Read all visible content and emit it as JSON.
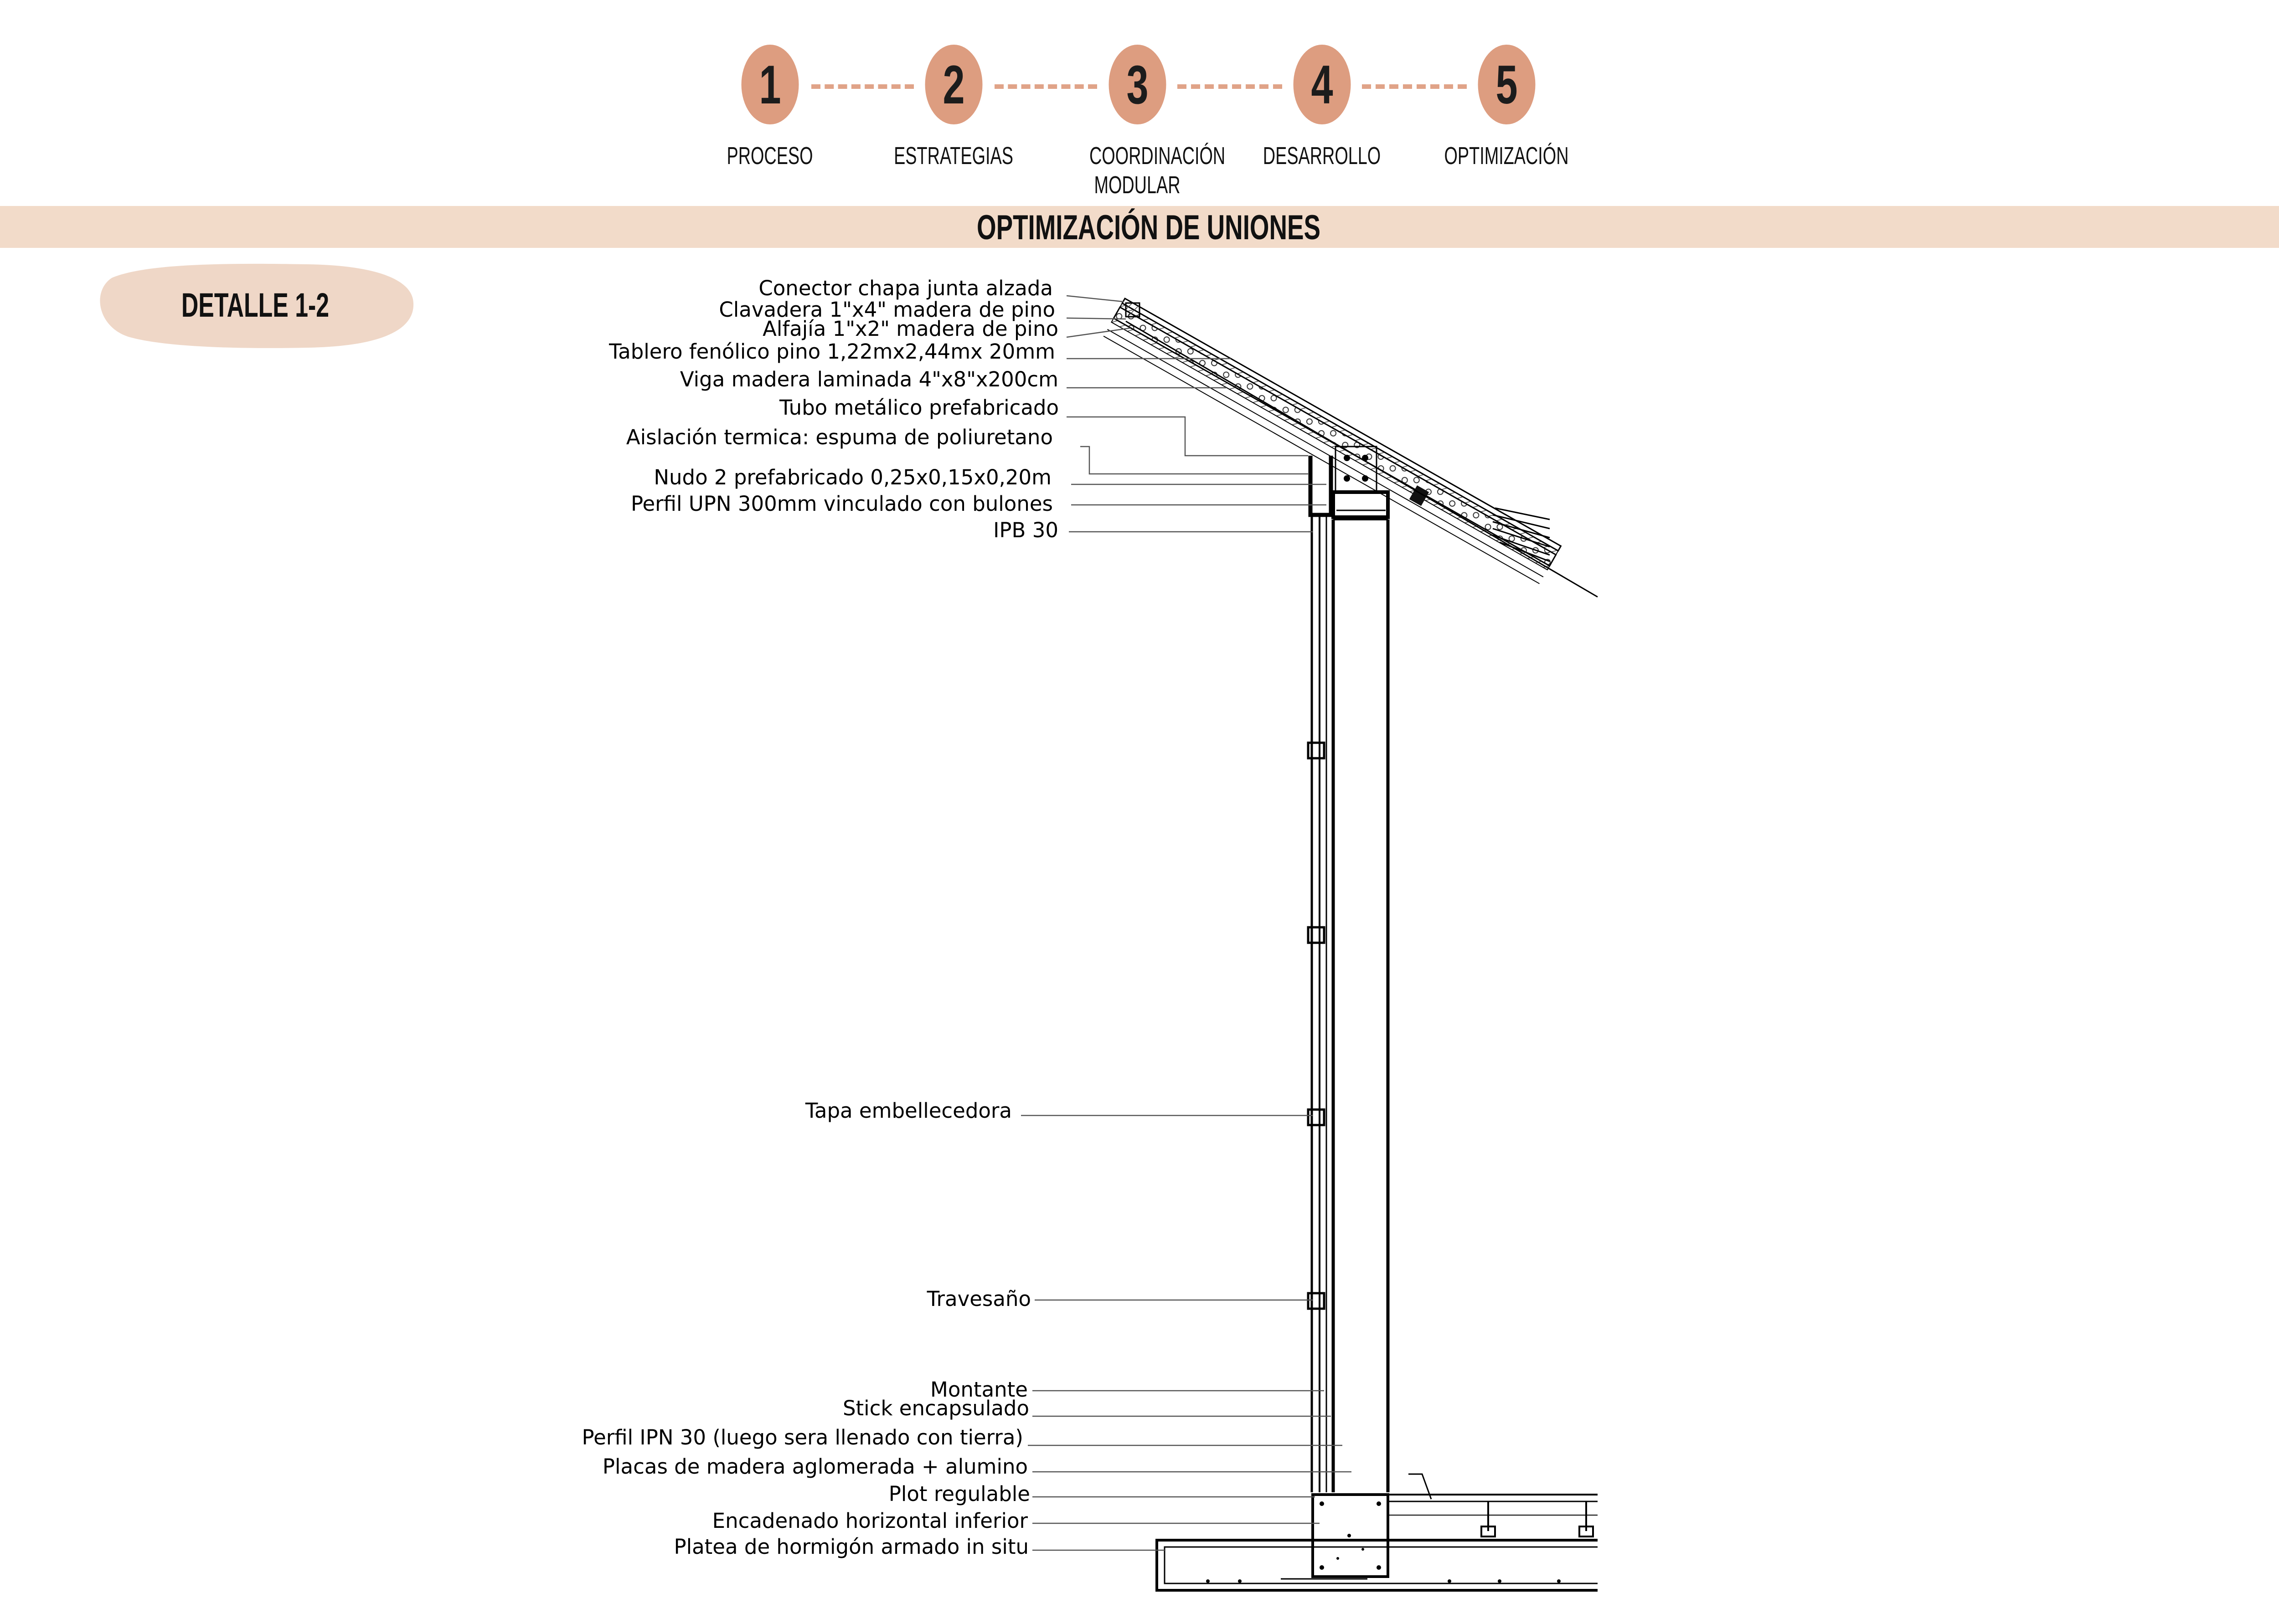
{
  "steps": [
    {
      "number": "1",
      "label": "PROCESO"
    },
    {
      "number": "2",
      "label": "ESTRATEGIAS"
    },
    {
      "number": "3",
      "label": "COORDINACIÓN MODULAR"
    },
    {
      "number": "4",
      "label": "DESARROLLO"
    },
    {
      "number": "5",
      "label": "OPTIMIZACIÓN"
    }
  ],
  "colors": {
    "step_circle": "#dd9d80",
    "step_line": "#e0a388",
    "band": "#f2dbc9",
    "badge": "#efd7c7"
  },
  "section_title": "OPTIMIZACIÓN DE UNIONES",
  "detail_label": "DETALLE 1-2",
  "annotations": {
    "conector": "Conector chapa junta alzada",
    "clavadera": "Clavadera 1\"x4\" madera de pino",
    "alfajia": "Alfajía 1\"x2\" madera de pino",
    "tablero": "Tablero fenólico pino 1,22mx2,44mx 20mm",
    "viga": "Viga madera laminada 4\"x8\"x200cm",
    "tubo": "Tubo metálico prefabricado",
    "aislacion": "Aislación termica: espuma de poliuretano",
    "nudo": "Nudo 2 prefabricado 0,25x0,15x0,20m",
    "perfil_upn": "Perfil UPN 300mm vinculado con bulones",
    "ipb": "IPB 30",
    "tapa": "Tapa embellecedora",
    "travesano": "Travesaño",
    "montante": "Montante",
    "stick": "Stick encapsulado",
    "perfil_ipn": "Perfil IPN 30 (luego sera llenado con tierra)",
    "placas": "Placas de madera aglomerada + alumino",
    "plot": "Plot regulable",
    "encadenado": "Encadenado horizontal inferior",
    "platea": "Platea de hormigón armado in situ"
  }
}
